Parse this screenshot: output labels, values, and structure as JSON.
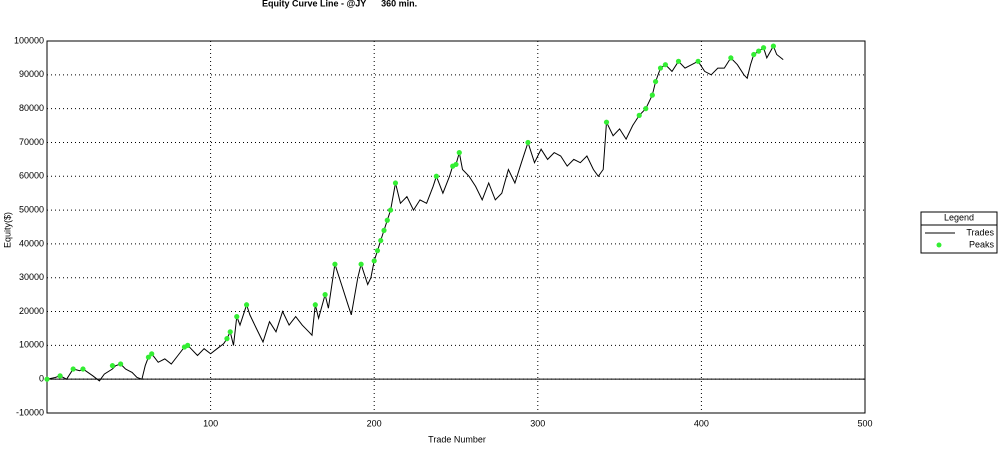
{
  "chart_data": {
    "type": "line",
    "title": "Equity Curve Line - @JY      360 min.",
    "x_label": "Trade Number",
    "y_label": "Equity($)",
    "legend_title": "Legend",
    "legend": "right",
    "grid": true,
    "xlim": [
      0,
      500
    ],
    "xticks": [
      100,
      200,
      300,
      400,
      500
    ],
    "ylim": [
      -10000,
      100000
    ],
    "yticks": [
      -10000,
      0,
      10000,
      20000,
      30000,
      40000,
      50000,
      60000,
      70000,
      80000,
      90000,
      100000
    ],
    "series": [
      {
        "name": "Trades",
        "color": "#000000",
        "style": "line",
        "x": [
          0,
          5,
          8,
          12,
          16,
          20,
          22,
          28,
          32,
          35,
          40,
          42,
          45,
          48,
          52,
          55,
          58,
          60,
          62,
          64,
          68,
          72,
          76,
          80,
          84,
          86,
          88,
          92,
          96,
          100,
          104,
          108,
          110,
          112,
          114,
          116,
          118,
          122,
          124,
          128,
          132,
          136,
          140,
          144,
          148,
          152,
          156,
          160,
          162,
          164,
          166,
          170,
          172,
          176,
          180,
          184,
          186,
          190,
          192,
          196,
          198,
          200,
          202,
          204,
          206,
          208,
          210,
          213,
          216,
          220,
          224,
          228,
          232,
          236,
          238,
          242,
          246,
          248,
          250,
          252,
          254,
          258,
          262,
          266,
          270,
          274,
          278,
          282,
          286,
          290,
          294,
          298,
          302,
          306,
          310,
          314,
          318,
          322,
          326,
          330,
          334,
          337,
          340,
          342,
          346,
          350,
          354,
          358,
          362,
          366,
          370,
          372,
          375,
          378,
          382,
          386,
          390,
          394,
          398,
          402,
          406,
          410,
          414,
          418,
          422,
          426,
          428,
          430,
          432,
          435,
          438,
          440,
          444,
          446,
          450
        ],
        "values": [
          0,
          500,
          1000,
          0,
          3000,
          2500,
          3000,
          1000,
          -500,
          1500,
          3000,
          4000,
          4500,
          3000,
          2000,
          500,
          0,
          4000,
          6500,
          7500,
          5000,
          6000,
          4500,
          7000,
          9500,
          10000,
          9000,
          7000,
          9000,
          7500,
          9000,
          10500,
          12000,
          14000,
          10000,
          18500,
          16000,
          22000,
          19000,
          15000,
          11000,
          17000,
          14000,
          20000,
          16000,
          18500,
          16000,
          14000,
          13000,
          22000,
          18000,
          25000,
          21000,
          34000,
          28000,
          22000,
          19000,
          30000,
          34000,
          28000,
          30000,
          35000,
          38000,
          41000,
          44000,
          47000,
          50000,
          58000,
          52000,
          54000,
          50000,
          53000,
          52000,
          57000,
          60000,
          55000,
          60000,
          63000,
          63500,
          67000,
          62000,
          60000,
          57000,
          53000,
          58000,
          53000,
          55000,
          62000,
          58000,
          64000,
          70000,
          64000,
          68000,
          65000,
          67000,
          66000,
          63000,
          65000,
          64000,
          66000,
          62000,
          60000,
          62000,
          76000,
          72000,
          74000,
          71000,
          75000,
          78000,
          80000,
          84000,
          88000,
          92000,
          93000,
          91000,
          94000,
          92000,
          93000,
          94000,
          91000,
          90000,
          92000,
          92000,
          95000,
          93000,
          90000,
          89000,
          93000,
          96000,
          97000,
          98000,
          95000,
          98500,
          96000,
          94500
        ]
      },
      {
        "name": "Peaks",
        "color": "#33ee33",
        "style": "markers",
        "x": [
          0,
          8,
          16,
          22,
          40,
          45,
          62,
          64,
          84,
          86,
          110,
          112,
          116,
          122,
          164,
          170,
          176,
          192,
          200,
          202,
          204,
          206,
          208,
          210,
          213,
          238,
          248,
          250,
          252,
          294,
          342,
          362,
          366,
          370,
          372,
          375,
          378,
          386,
          398,
          418,
          432,
          435,
          438,
          444
        ],
        "values": [
          0,
          1000,
          3000,
          3000,
          4000,
          4500,
          6500,
          7500,
          9500,
          10000,
          12000,
          14000,
          18500,
          22000,
          22000,
          25000,
          34000,
          34000,
          35000,
          38000,
          41000,
          44000,
          47000,
          50000,
          58000,
          60000,
          63000,
          63500,
          67000,
          70000,
          76000,
          78000,
          80000,
          84000,
          88000,
          92000,
          93000,
          94000,
          94000,
          95000,
          96000,
          97000,
          98000,
          98500
        ]
      }
    ]
  }
}
